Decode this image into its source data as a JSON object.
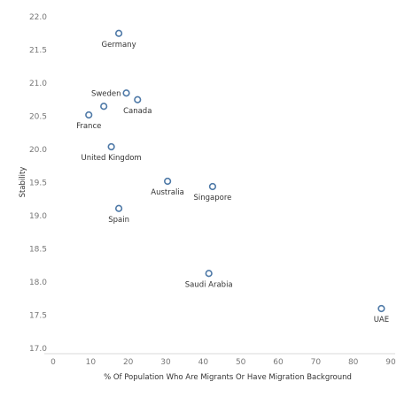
{
  "chart_data": {
    "type": "scatter",
    "xlabel": "% Of Population Who Are Migrants Or Have Migration Background",
    "ylabel": "Stability",
    "xlim": [
      0,
      90
    ],
    "ylim": [
      17.0,
      22.0
    ],
    "x_ticks": [
      "0",
      "10",
      "20",
      "30",
      "40",
      "50",
      "60",
      "70",
      "80",
      "90"
    ],
    "y_ticks": [
      "17.0",
      "17.5",
      "18.0",
      "18.5",
      "19.0",
      "19.5",
      "20.0",
      "20.5",
      "21.0",
      "21.5",
      "22.0"
    ],
    "grid": false,
    "marker_color": "#4e79a7",
    "points": [
      {
        "label": "Germany",
        "x": 17.5,
        "y": 21.75,
        "label_pos": "below"
      },
      {
        "label": "Sweden",
        "x": 19.5,
        "y": 20.85,
        "label_pos": "left"
      },
      {
        "label": "",
        "x": 13.5,
        "y": 20.65,
        "label_pos": "none"
      },
      {
        "label": "Canada",
        "x": 22.5,
        "y": 20.75,
        "label_pos": "below"
      },
      {
        "label": "France",
        "x": 9.5,
        "y": 20.52,
        "label_pos": "below"
      },
      {
        "label": "United Kingdom",
        "x": 15.5,
        "y": 20.04,
        "label_pos": "below"
      },
      {
        "label": "Australia",
        "x": 30.5,
        "y": 19.52,
        "label_pos": "below"
      },
      {
        "label": "Singapore",
        "x": 42.5,
        "y": 19.44,
        "label_pos": "below"
      },
      {
        "label": "Spain",
        "x": 17.5,
        "y": 19.11,
        "label_pos": "below"
      },
      {
        "label": "Saudi Arabia",
        "x": 41.5,
        "y": 18.13,
        "label_pos": "below"
      },
      {
        "label": "UAE",
        "x": 87.5,
        "y": 17.6,
        "label_pos": "below"
      }
    ]
  }
}
